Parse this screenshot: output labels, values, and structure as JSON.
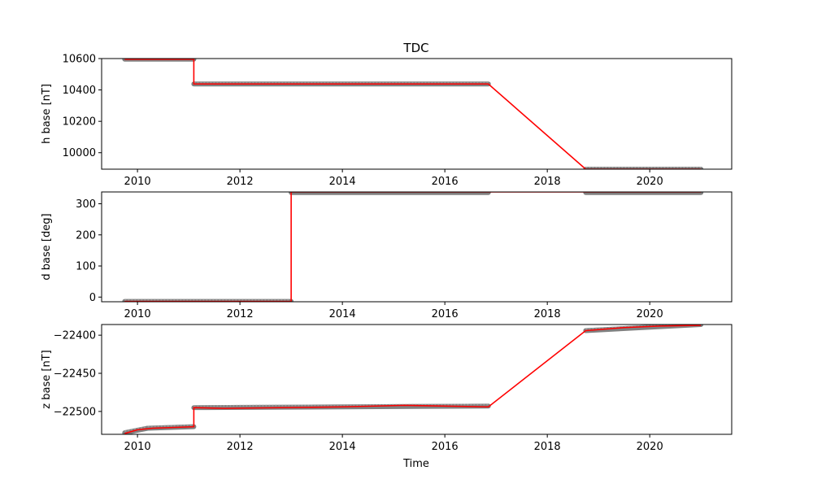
{
  "chart_data": {
    "type": "line",
    "title": "TDC",
    "xlabel": "Time",
    "x_ticks": [
      "2010",
      "2012",
      "2014",
      "2016",
      "2018",
      "2020"
    ],
    "xlim": [
      2009.3,
      2021.6
    ],
    "raw_color": "#808080",
    "baseline_color": "#ff0000",
    "panels": [
      {
        "ylabel": "h base [nT]",
        "ylim": [
          9895,
          10600
        ],
        "y_ticks": [
          10000,
          10200,
          10400,
          10600
        ],
        "raw_segments": [
          {
            "x_start": 2009.75,
            "x_end": 2011.1,
            "y_start": 10596,
            "y_end": 10596
          },
          {
            "x_start": 2011.1,
            "x_end": 2016.85,
            "y_start": 10438,
            "y_end": 10438
          },
          {
            "x_start": 2018.75,
            "x_end": 2021.0,
            "y_start": 9895,
            "y_end": 9895
          }
        ],
        "baseline": [
          {
            "x": 2009.75,
            "y": 10596
          },
          {
            "x": 2011.1,
            "y": 10596
          },
          {
            "x": 2011.1,
            "y": 10438
          },
          {
            "x": 2016.85,
            "y": 10438
          },
          {
            "x": 2018.75,
            "y": 9895
          },
          {
            "x": 2021.0,
            "y": 9895
          }
        ]
      },
      {
        "ylabel": "d base [deg]",
        "ylim": [
          -15,
          338
        ],
        "y_ticks": [
          0,
          100,
          200,
          300
        ],
        "raw_segments": [
          {
            "x_start": 2009.75,
            "x_end": 2013.0,
            "y_start": -14,
            "y_end": -14
          },
          {
            "x_start": 2013.0,
            "x_end": 2016.85,
            "y_start": 336,
            "y_end": 336
          },
          {
            "x_start": 2018.75,
            "x_end": 2021.0,
            "y_start": 336,
            "y_end": 336
          }
        ],
        "baseline": [
          {
            "x": 2009.75,
            "y": -14
          },
          {
            "x": 2013.0,
            "y": -14
          },
          {
            "x": 2013.0,
            "y": 338
          },
          {
            "x": 2021.0,
            "y": 338
          }
        ]
      },
      {
        "ylabel": "z base [nT]",
        "ylim": [
          -22530,
          -22386
        ],
        "y_ticks": [
          -22500,
          -22450,
          -22400
        ],
        "raw_segments": [
          {
            "x_start": 2009.75,
            "x_end": 2010.2,
            "y_start": -22528,
            "y_end": -22522
          },
          {
            "x_start": 2010.2,
            "x_end": 2011.1,
            "y_start": -22522,
            "y_end": -22520
          },
          {
            "x_start": 2011.1,
            "x_end": 2016.85,
            "y_start": -22495,
            "y_end": -22493
          },
          {
            "x_start": 2018.75,
            "x_end": 2021.0,
            "y_start": -22394,
            "y_end": -22386
          }
        ],
        "baseline": [
          {
            "x": 2009.75,
            "y": -22529
          },
          {
            "x": 2010.0,
            "y": -22524
          },
          {
            "x": 2010.3,
            "y": -22522
          },
          {
            "x": 2011.1,
            "y": -22520
          },
          {
            "x": 2011.1,
            "y": -22495
          },
          {
            "x": 2011.7,
            "y": -22496
          },
          {
            "x": 2014.0,
            "y": -22494
          },
          {
            "x": 2015.2,
            "y": -22492
          },
          {
            "x": 2016.85,
            "y": -22494
          },
          {
            "x": 2018.75,
            "y": -22394
          },
          {
            "x": 2019.5,
            "y": -22390
          },
          {
            "x": 2020.2,
            "y": -22388
          },
          {
            "x": 2021.0,
            "y": -22387
          }
        ]
      }
    ]
  }
}
